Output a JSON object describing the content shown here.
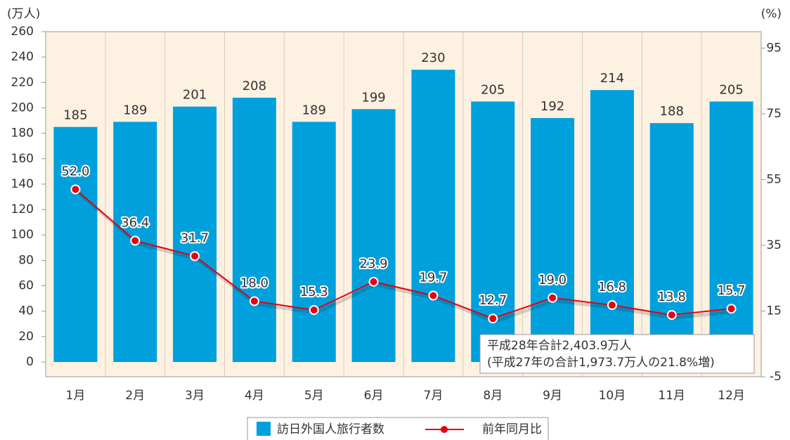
{
  "chart_data": {
    "type": "bar+line",
    "y_label": "(万人)",
    "y2_label": "(%)",
    "categories": [
      "1月",
      "2月",
      "3月",
      "4月",
      "5月",
      "6月",
      "7月",
      "8月",
      "9月",
      "10月",
      "11月",
      "12月"
    ],
    "series": [
      {
        "name": "訪日外国人旅行者数",
        "type": "bar",
        "color": "#00a0dc",
        "values": [
          185,
          189,
          201,
          208,
          189,
          199,
          230,
          205,
          192,
          214,
          188,
          205
        ]
      },
      {
        "name": "前年同月比",
        "type": "line",
        "axis": "y2",
        "color": "#e60012",
        "values": [
          52.0,
          36.4,
          31.7,
          18.0,
          15.3,
          23.9,
          19.7,
          12.7,
          19.0,
          16.8,
          13.8,
          15.7
        ],
        "value_labels": [
          "52.0",
          "36.4",
          "31.7",
          "18.0",
          "15.3",
          "23.9",
          "19.7",
          "12.7",
          "19.0",
          "16.8",
          "13.8",
          "15.7"
        ]
      }
    ],
    "ylim": [
      -11.6,
      260
    ],
    "yticks": [
      0,
      20,
      40,
      60,
      80,
      100,
      120,
      140,
      160,
      180,
      200,
      220,
      240,
      260
    ],
    "y2lim": [
      -5,
      100
    ],
    "y2ticks": [
      -5,
      15,
      35,
      55,
      75,
      95
    ],
    "annotation": [
      "平成28年合計2,403.9万人",
      "(平成27年の合計1,973.7万人の21.8%増)"
    ],
    "legend": "bottom"
  }
}
